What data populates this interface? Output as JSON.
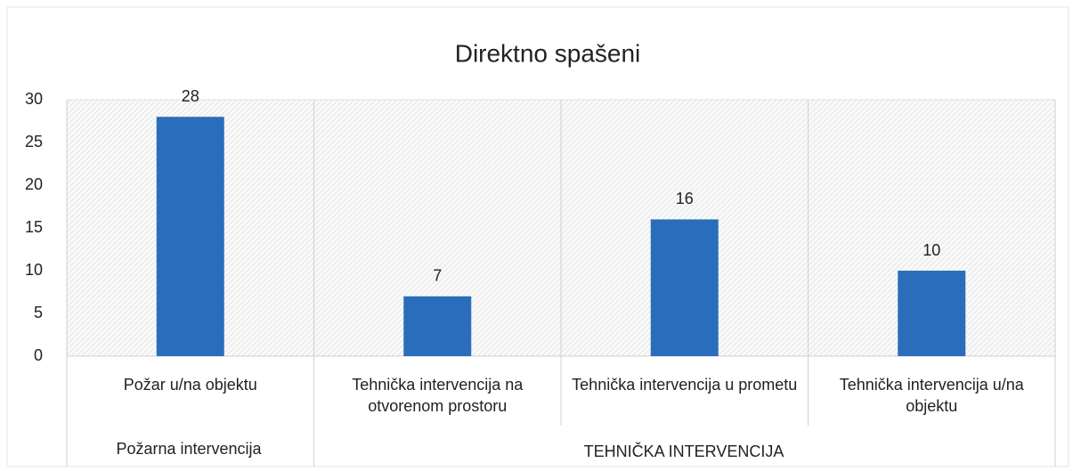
{
  "chart_data": {
    "type": "bar",
    "title": "Direktno spašeni",
    "categories": [
      "Požar u/na objektu",
      "Tehnička intervencija na otvorenom prostoru",
      "Tehnička intervencija u prometu",
      "Tehnička intervencija u/na objektu"
    ],
    "groups": [
      "Požarna intervencija",
      "TEHNIČKA INTERVENCIJA"
    ],
    "values": [
      28,
      7,
      16,
      10
    ],
    "color": "#2a6ebb",
    "ylim": [
      0,
      30
    ],
    "yticks": [
      0,
      5,
      10,
      15,
      20,
      25,
      30
    ],
    "grid": false
  }
}
